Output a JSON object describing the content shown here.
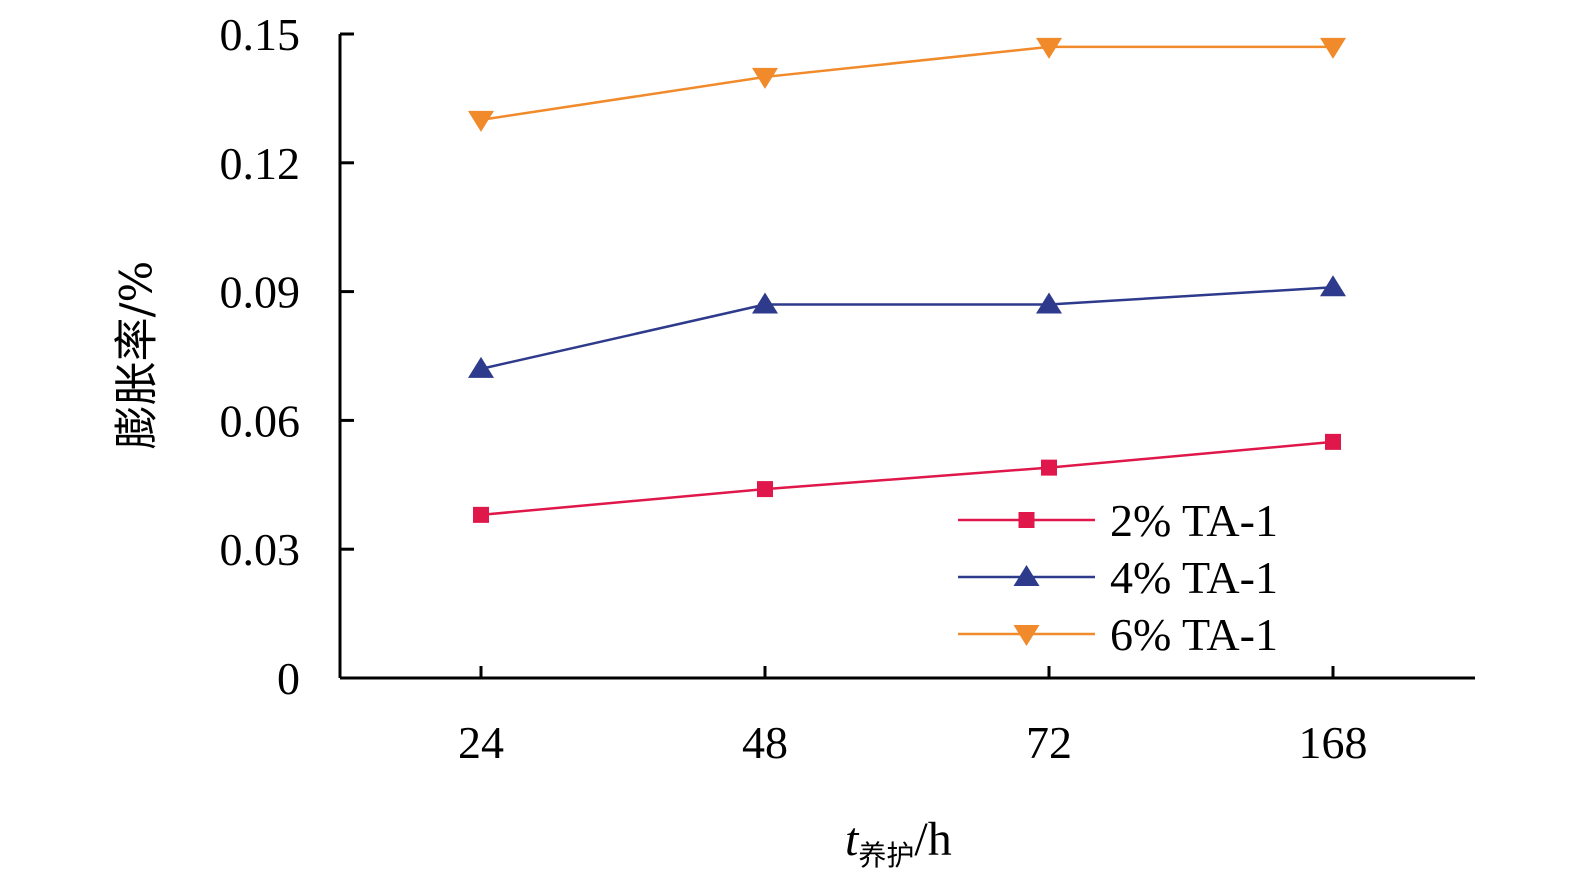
{
  "colors": {
    "axis": "#000000",
    "series_2": "#e0174a",
    "series_4": "#2e3a8c",
    "series_6": "#f08a2a"
  },
  "chart_data": {
    "type": "line",
    "categories": [
      "24",
      "48",
      "72",
      "168"
    ],
    "ylim": [
      0,
      0.15
    ],
    "yticks": [
      "0",
      "0.03",
      "0.06",
      "0.09",
      "0.12",
      "0.15"
    ],
    "ylabel": "膨胀率/%",
    "xlabel": {
      "var": "t",
      "subscript": "养护",
      "unit": "/h"
    },
    "legend_position": "bottom-right",
    "series": [
      {
        "name": "2% TA-1",
        "marker": "square",
        "color": "#e0174a",
        "values": [
          0.038,
          0.044,
          0.049,
          0.055
        ]
      },
      {
        "name": "4% TA-1",
        "marker": "triangle-up",
        "color": "#2e3a8c",
        "values": [
          0.072,
          0.087,
          0.087,
          0.091
        ]
      },
      {
        "name": "6% TA-1",
        "marker": "triangle-down",
        "color": "#f08a2a",
        "values": [
          0.13,
          0.14,
          0.147,
          0.147
        ]
      }
    ]
  }
}
